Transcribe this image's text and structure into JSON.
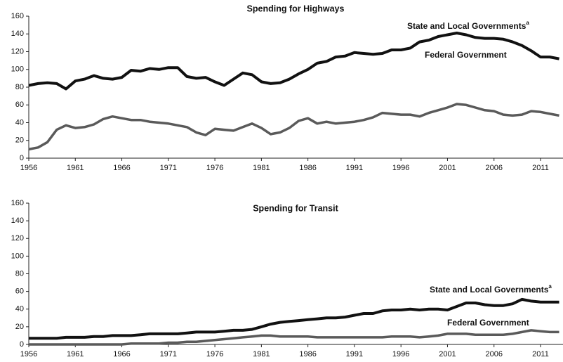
{
  "chart_data": [
    {
      "type": "line",
      "title": "Spending for Highways",
      "x": [
        1956,
        1957,
        1958,
        1959,
        1960,
        1961,
        1962,
        1963,
        1964,
        1965,
        1966,
        1967,
        1968,
        1969,
        1970,
        1971,
        1972,
        1973,
        1974,
        1975,
        1976,
        1977,
        1978,
        1979,
        1980,
        1981,
        1982,
        1983,
        1984,
        1985,
        1986,
        1987,
        1988,
        1989,
        1990,
        1991,
        1992,
        1993,
        1994,
        1995,
        1996,
        1997,
        1998,
        1999,
        2000,
        2001,
        2002,
        2003,
        2004,
        2005,
        2006,
        2007,
        2008,
        2009,
        2010,
        2011,
        2012,
        2013
      ],
      "xlim": [
        1956,
        2013
      ],
      "xticks": [
        1956,
        1961,
        1966,
        1971,
        1976,
        1981,
        1986,
        1991,
        1996,
        2001,
        2006,
        2011
      ],
      "ylim": [
        0,
        160
      ],
      "yticks": [
        0,
        20,
        40,
        60,
        80,
        100,
        120,
        140,
        160
      ],
      "series": [
        {
          "name": "State and Local Governments",
          "name_superscript": "a",
          "color": "#111111",
          "values": [
            82,
            84,
            85,
            84,
            78,
            87,
            89,
            93,
            90,
            89,
            91,
            99,
            98,
            101,
            100,
            102,
            102,
            92,
            90,
            91,
            86,
            82,
            89,
            96,
            94,
            86,
            84,
            85,
            89,
            95,
            100,
            107,
            109,
            114,
            115,
            119,
            118,
            117,
            118,
            122,
            122,
            124,
            131,
            133,
            137,
            139,
            141,
            139,
            136,
            135,
            135,
            134,
            131,
            127,
            121,
            114,
            114,
            112
          ]
        },
        {
          "name": "Federal Government",
          "color": "#5a5a5a",
          "values": [
            10,
            12,
            18,
            32,
            37,
            34,
            35,
            38,
            44,
            47,
            45,
            43,
            43,
            41,
            40,
            39,
            37,
            35,
            29,
            26,
            33,
            32,
            31,
            35,
            39,
            34,
            27,
            29,
            34,
            42,
            45,
            39,
            41,
            39,
            40,
            41,
            43,
            46,
            51,
            50,
            49,
            49,
            47,
            51,
            54,
            57,
            61,
            60,
            57,
            54,
            53,
            49,
            48,
            49,
            53,
            52,
            50,
            48
          ]
        }
      ]
    },
    {
      "type": "line",
      "title": "Spending for Transit",
      "x": [
        1956,
        1957,
        1958,
        1959,
        1960,
        1961,
        1962,
        1963,
        1964,
        1965,
        1966,
        1967,
        1968,
        1969,
        1970,
        1971,
        1972,
        1973,
        1974,
        1975,
        1976,
        1977,
        1978,
        1979,
        1980,
        1981,
        1982,
        1983,
        1984,
        1985,
        1986,
        1987,
        1988,
        1989,
        1990,
        1991,
        1992,
        1993,
        1994,
        1995,
        1996,
        1997,
        1998,
        1999,
        2000,
        2001,
        2002,
        2003,
        2004,
        2005,
        2006,
        2007,
        2008,
        2009,
        2010,
        2011,
        2012,
        2013
      ],
      "xlim": [
        1956,
        2013
      ],
      "xticks": [
        1956,
        1961,
        1966,
        1971,
        1976,
        1981,
        1986,
        1991,
        1996,
        2001,
        2006,
        2011
      ],
      "ylim": [
        0,
        160
      ],
      "yticks": [
        0,
        20,
        40,
        60,
        80,
        100,
        120,
        140,
        160
      ],
      "series": [
        {
          "name": "State and Local Governments",
          "name_superscript": "a",
          "color": "#111111",
          "values": [
            7,
            7,
            7,
            7,
            8,
            8,
            8,
            9,
            9,
            10,
            10,
            10,
            11,
            12,
            12,
            12,
            12,
            13,
            14,
            14,
            14,
            15,
            16,
            16,
            17,
            20,
            23,
            25,
            26,
            27,
            28,
            29,
            30,
            30,
            31,
            33,
            35,
            35,
            38,
            39,
            39,
            40,
            39,
            40,
            40,
            39,
            43,
            47,
            47,
            45,
            44,
            44,
            46,
            51,
            49,
            48,
            48,
            48
          ]
        },
        {
          "name": "Federal Government",
          "color": "#5a5a5a",
          "values": [
            0,
            0,
            0,
            0,
            0,
            0,
            0,
            0,
            0,
            0,
            0,
            1,
            1,
            1,
            1,
            2,
            2,
            3,
            3,
            4,
            5,
            6,
            7,
            8,
            9,
            10,
            10,
            9,
            9,
            9,
            9,
            8,
            8,
            8,
            8,
            8,
            8,
            8,
            8,
            9,
            9,
            9,
            8,
            9,
            10,
            12,
            12,
            12,
            11,
            11,
            11,
            11,
            12,
            14,
            16,
            15,
            14,
            14
          ]
        }
      ]
    }
  ]
}
